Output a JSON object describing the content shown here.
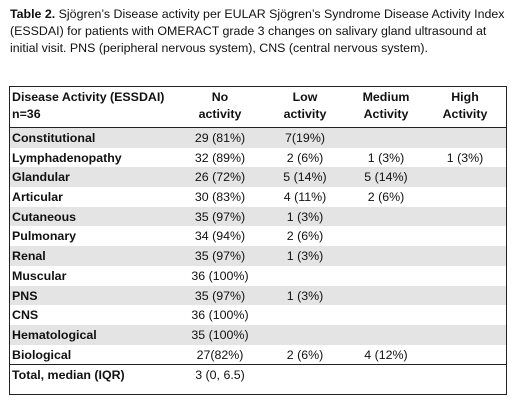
{
  "caption": {
    "label": "Table 2.",
    "text": " Sjögren’s Disease activity per EULAR Sjögren’s Syndrome Disease Activity Index (ESSDAI)  for patients with OMERACT grade 3 changes on salivary gland ultrasound at initial visit. PNS (peripheral nervous system), CNS (central nervous system)."
  },
  "table": {
    "header": {
      "col0_line1": "Disease Activity (ESSDAI)",
      "col0_line2": "n=36",
      "col1_line1": "No",
      "col1_line2": "activity",
      "col2_line1": "Low",
      "col2_line2": "activity",
      "col3_line1": "Medium",
      "col3_line2": "Activity",
      "col4_line1": "High",
      "col4_line2": "Activity"
    },
    "rows": [
      {
        "name": "Constitutional",
        "no": "29 (81%)",
        "low": "7(19%)",
        "medium": "",
        "high": ""
      },
      {
        "name": "Lymphadenopathy",
        "no": "32 (89%)",
        "low": "2 (6%)",
        "medium": "1 (3%)",
        "high": "1 (3%)"
      },
      {
        "name": "Glandular",
        "no": "26 (72%)",
        "low": "5 (14%)",
        "medium": "5 (14%)",
        "high": ""
      },
      {
        "name": "Articular",
        "no": "30 (83%)",
        "low": "4 (11%)",
        "medium": "2 (6%)",
        "high": ""
      },
      {
        "name": "Cutaneous",
        "no": "35 (97%)",
        "low": "1 (3%)",
        "medium": "",
        "high": ""
      },
      {
        "name": "Pulmonary",
        "no": "34 (94%)",
        "low": "2 (6%)",
        "medium": "",
        "high": ""
      },
      {
        "name": "Renal",
        "no": "35 (97%)",
        "low": "1 (3%)",
        "medium": "",
        "high": ""
      },
      {
        "name": "Muscular",
        "no": "36 (100%)",
        "low": "",
        "medium": "",
        "high": ""
      },
      {
        "name": "PNS",
        "no": "35 (97%)",
        "low": "1 (3%)",
        "medium": "",
        "high": ""
      },
      {
        "name": "CNS",
        "no": "36 (100%)",
        "low": "",
        "medium": "",
        "high": ""
      },
      {
        "name": "Hematological",
        "no": "35 (100%)",
        "low": "",
        "medium": "",
        "high": ""
      },
      {
        "name": "Biological",
        "no": "27(82%)",
        "low": "2 (6%)",
        "medium": "4 (12%)",
        "high": ""
      }
    ],
    "total": {
      "name": "Total, median (IQR)",
      "no": "3 (0, 6.5)"
    }
  },
  "colors": {
    "row_shade": "#e4e4e4",
    "border": "#222222"
  }
}
